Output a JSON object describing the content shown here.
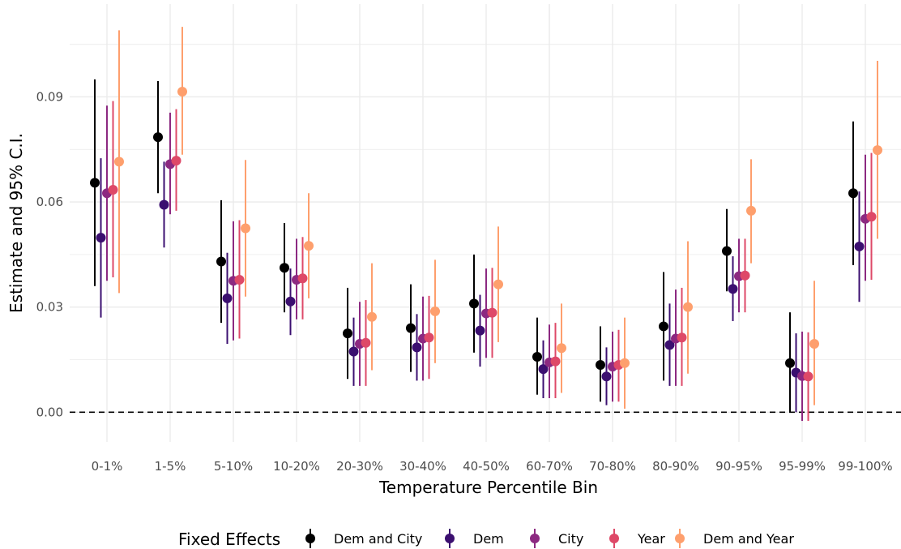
{
  "chart_data": {
    "type": "scatter",
    "subtype": "point-range (estimate with 95% confidence interval)",
    "xlabel": "Temperature Percentile Bin",
    "ylabel": "Estimate and 95% C.I.",
    "ylim": [
      -0.0085,
      0.1165
    ],
    "yticks": [
      0.0,
      0.03,
      0.06,
      0.09
    ],
    "ytick_labels": [
      "0.00",
      "0.03",
      "0.06",
      "0.09"
    ],
    "reference_line": {
      "y": 0.0,
      "style": "dashed"
    },
    "grid": true,
    "legend": {
      "title": "Fixed Effects",
      "position": "bottom"
    },
    "categories": [
      "0-1%",
      "1-5%",
      "5-10%",
      "10-20%",
      "20-30%",
      "30-40%",
      "40-50%",
      "60-70%",
      "70-80%",
      "80-90%",
      "90-95%",
      "95-99%",
      "99-100%"
    ],
    "series": [
      {
        "name": "Dem and City",
        "color": "#000000",
        "estimate": [
          0.0655,
          0.0785,
          0.043,
          0.0412,
          0.0225,
          0.024,
          0.031,
          0.0158,
          0.0135,
          0.0245,
          0.046,
          0.014,
          0.0625
        ],
        "lower": [
          0.036,
          0.0625,
          0.0255,
          0.0285,
          0.0095,
          0.0115,
          0.017,
          0.005,
          0.003,
          0.009,
          0.0345,
          0.0,
          0.042
        ],
        "upper": [
          0.095,
          0.0945,
          0.0605,
          0.054,
          0.0355,
          0.0365,
          0.045,
          0.027,
          0.0245,
          0.04,
          0.058,
          0.0285,
          0.083
        ]
      },
      {
        "name": "Dem",
        "color": "#3b0f70",
        "estimate": [
          0.0498,
          0.0592,
          0.0325,
          0.0316,
          0.0173,
          0.0185,
          0.0233,
          0.0123,
          0.0102,
          0.0192,
          0.0352,
          0.0113,
          0.0473
        ],
        "lower": [
          0.027,
          0.047,
          0.0195,
          0.022,
          0.0075,
          0.009,
          0.013,
          0.004,
          0.002,
          0.0075,
          0.026,
          0.0,
          0.0315
        ],
        "upper": [
          0.0725,
          0.0715,
          0.0455,
          0.041,
          0.027,
          0.028,
          0.0335,
          0.0205,
          0.0185,
          0.031,
          0.0445,
          0.0225,
          0.063
        ]
      },
      {
        "name": "City",
        "color": "#8c2981",
        "estimate": [
          0.0625,
          0.0708,
          0.0375,
          0.0378,
          0.0195,
          0.021,
          0.0282,
          0.0142,
          0.013,
          0.021,
          0.0388,
          0.0103,
          0.0552
        ],
        "lower": [
          0.0375,
          0.0565,
          0.0205,
          0.0265,
          0.0075,
          0.009,
          0.0155,
          0.004,
          0.003,
          0.0075,
          0.0285,
          -0.0025,
          0.0375
        ],
        "upper": [
          0.0875,
          0.0855,
          0.0545,
          0.0495,
          0.0315,
          0.033,
          0.041,
          0.025,
          0.023,
          0.035,
          0.0495,
          0.023,
          0.0735
        ]
      },
      {
        "name": "Year",
        "color": "#de4968",
        "estimate": [
          0.0635,
          0.0718,
          0.0378,
          0.0382,
          0.0198,
          0.0213,
          0.0284,
          0.0145,
          0.0135,
          0.0213,
          0.039,
          0.0102,
          0.0558
        ],
        "lower": [
          0.0385,
          0.0575,
          0.021,
          0.0265,
          0.0075,
          0.0095,
          0.0155,
          0.004,
          0.003,
          0.0075,
          0.0285,
          -0.0025,
          0.0378
        ],
        "upper": [
          0.0888,
          0.0865,
          0.0548,
          0.05,
          0.032,
          0.0332,
          0.0412,
          0.0255,
          0.0235,
          0.0355,
          0.0495,
          0.0228,
          0.074
        ]
      },
      {
        "name": "Dem and Year",
        "color": "#fe9f6d",
        "estimate": [
          0.0715,
          0.0915,
          0.0525,
          0.0475,
          0.0272,
          0.0288,
          0.0365,
          0.0183,
          0.014,
          0.03,
          0.0575,
          0.0195,
          0.0748
        ],
        "lower": [
          0.034,
          0.0735,
          0.033,
          0.0325,
          0.012,
          0.014,
          0.02,
          0.0055,
          0.001,
          0.011,
          0.0425,
          0.002,
          0.0495
        ],
        "upper": [
          0.109,
          0.11,
          0.072,
          0.0625,
          0.0425,
          0.0435,
          0.053,
          0.031,
          0.027,
          0.0488,
          0.0722,
          0.0375,
          0.1003
        ]
      }
    ]
  }
}
